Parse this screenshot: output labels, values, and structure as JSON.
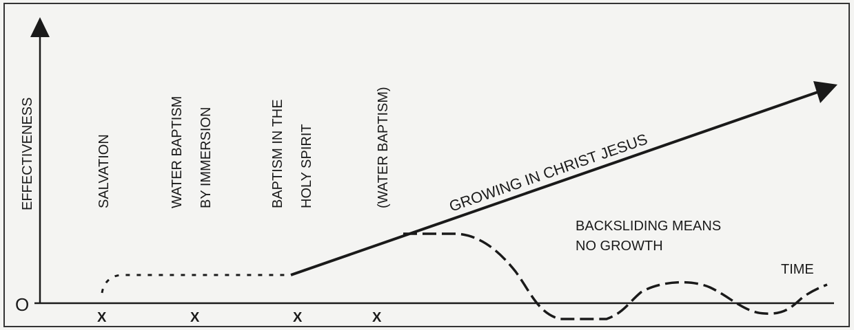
{
  "diagram": {
    "y_axis_label": "EFFECTIVENESS",
    "x_axis_label": "TIME",
    "origin_label": "O",
    "events": [
      {
        "lines": [
          "SALVATION"
        ],
        "marker": "X"
      },
      {
        "lines": [
          "WATER BAPTISM",
          "BY IMMERSION"
        ],
        "marker": "X"
      },
      {
        "lines": [
          "BAPTISM IN THE",
          "HOLY SPIRIT"
        ],
        "marker": "X"
      },
      {
        "lines": [
          "(WATER BAPTISM)"
        ],
        "marker": "X"
      }
    ],
    "growth_label": "GROWING IN CHRIST JESUS",
    "backsliding_label": [
      "BACKSLIDING MEANS",
      "NO GROWTH"
    ]
  }
}
